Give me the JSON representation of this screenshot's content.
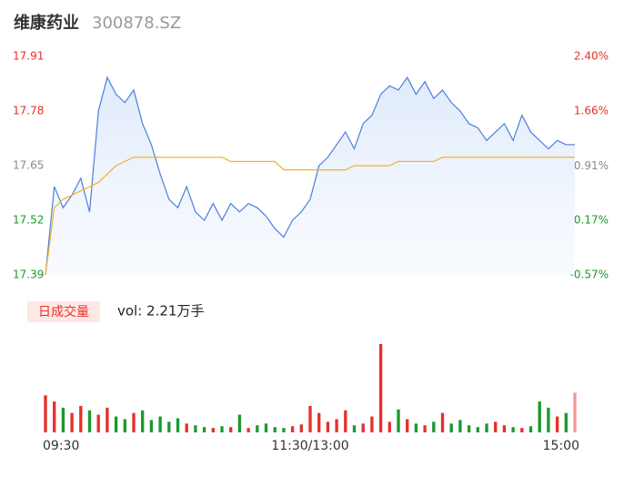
{
  "chart_data": {
    "type": "intraday",
    "title": "维康药业",
    "code": "300878.SZ",
    "volume_label": "日成交量",
    "volume_text": "vol: 2.21万手",
    "xlim": [
      0,
      240
    ],
    "xticks": [
      {
        "value": 0,
        "label": "09:30"
      },
      {
        "value": 120,
        "label": "11:30/13:00"
      },
      {
        "value": 240,
        "label": "15:00"
      }
    ],
    "ylim": [
      17.39,
      17.91
    ],
    "yticks": [
      17.91,
      17.78,
      17.65,
      17.52,
      17.39
    ],
    "y2lim": [
      -0.57,
      2.4
    ],
    "y2ticks": [
      {
        "value": 2.4,
        "label": "2.40%"
      },
      {
        "value": 1.66,
        "label": "1.66%"
      },
      {
        "value": 0.91,
        "label": "0.91%"
      },
      {
        "value": 0.17,
        "label": "0.17%"
      },
      {
        "value": -0.57,
        "label": "-0.57%"
      }
    ],
    "ytick_colors": [
      "#e5312b",
      "#e5312b",
      "#888888",
      "#1a9a2e",
      "#1a9a2e"
    ],
    "up_color": "#e5312b",
    "down_color": "#1a9a2e",
    "series": [
      {
        "name": "price",
        "color": "#4a7fdc",
        "values": [
          17.39,
          17.6,
          17.55,
          17.58,
          17.62,
          17.54,
          17.78,
          17.86,
          17.82,
          17.8,
          17.83,
          17.75,
          17.7,
          17.63,
          17.57,
          17.55,
          17.6,
          17.54,
          17.52,
          17.56,
          17.52,
          17.56,
          17.54,
          17.56,
          17.55,
          17.53,
          17.5,
          17.48,
          17.52,
          17.54,
          17.57,
          17.65,
          17.67,
          17.7,
          17.73,
          17.69,
          17.75,
          17.77,
          17.82,
          17.84,
          17.83,
          17.86,
          17.82,
          17.85,
          17.81,
          17.83,
          17.8,
          17.78,
          17.75,
          17.74,
          17.71,
          17.73,
          17.75,
          17.71,
          17.77,
          17.73,
          17.71,
          17.69,
          17.71,
          17.7,
          17.7
        ]
      },
      {
        "name": "average",
        "color": "#f2b22e",
        "values": [
          17.39,
          17.55,
          17.57,
          17.58,
          17.59,
          17.6,
          17.61,
          17.63,
          17.65,
          17.66,
          17.67,
          17.67,
          17.67,
          17.67,
          17.67,
          17.67,
          17.67,
          17.67,
          17.67,
          17.67,
          17.67,
          17.66,
          17.66,
          17.66,
          17.66,
          17.66,
          17.66,
          17.64,
          17.64,
          17.64,
          17.64,
          17.64,
          17.64,
          17.64,
          17.64,
          17.65,
          17.65,
          17.65,
          17.65,
          17.65,
          17.66,
          17.66,
          17.66,
          17.66,
          17.66,
          17.67,
          17.67,
          17.67,
          17.67,
          17.67,
          17.67,
          17.67,
          17.67,
          17.67,
          17.67,
          17.67,
          17.67,
          17.67,
          17.67,
          17.67,
          17.67
        ]
      }
    ],
    "volume_ylim": [
      0,
      100
    ],
    "volume": [
      42,
      35,
      28,
      22,
      30,
      25,
      20,
      28,
      18,
      15,
      22,
      25,
      14,
      18,
      12,
      16,
      10,
      8,
      6,
      5,
      7,
      6,
      20,
      5,
      8,
      10,
      6,
      5,
      7,
      9,
      30,
      22,
      12,
      15,
      25,
      8,
      10,
      18,
      100,
      12,
      26,
      15,
      10,
      8,
      12,
      22,
      10,
      14,
      8,
      6,
      10,
      12,
      8,
      6,
      5,
      7,
      35,
      28,
      18,
      22,
      45
    ]
  }
}
